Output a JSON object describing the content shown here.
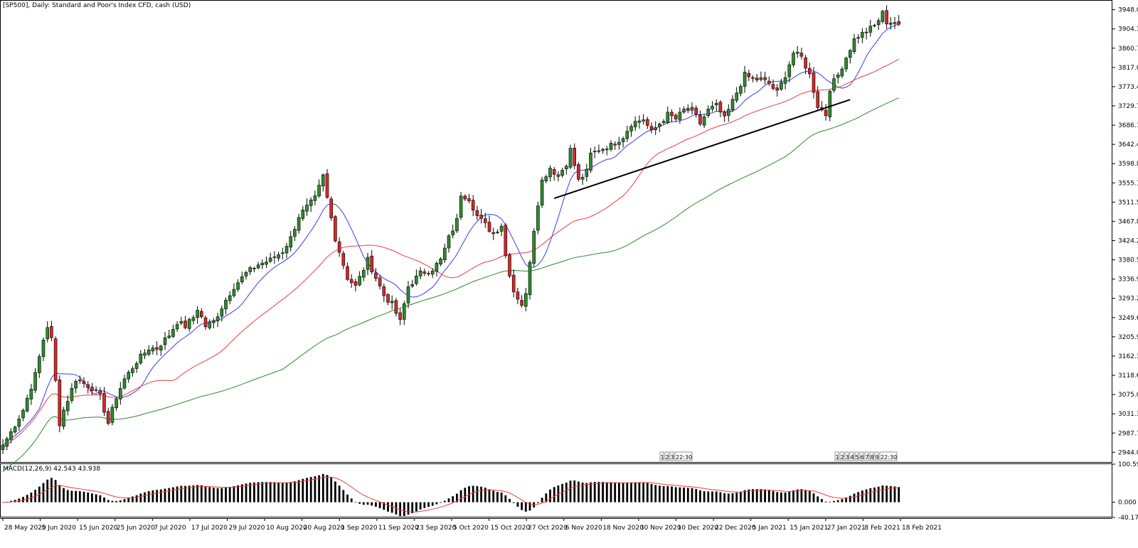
{
  "window": {
    "title": "[SP500], Daily:  Standard and Poor's Index CFD, cash (USD)",
    "macd_label": "MACD(12,26,9) 42.543 43.938"
  },
  "colors": {
    "bull": "#2e8b2e",
    "bear": "#d62828",
    "ma_short": "#3a3af5",
    "ma_mid": "#f03c3c",
    "ma_long": "#2a8a2a",
    "trendline": "#000000",
    "macd_hist": "#000000",
    "macd_signal": "#f03c3c"
  },
  "chart_data": [
    {
      "type": "candlestick",
      "title": "[SP500], Daily:  Standard and Poor's Index CFD, cash (USD)",
      "ylim": [
        2922.0,
        3970.0
      ],
      "y_ticks": [
        "3948.00",
        "3904.35",
        "3860.70",
        "3817.05",
        "3773.40",
        "3729.75",
        "3686.10",
        "3642.45",
        "3598.80",
        "3555.15",
        "3511.50",
        "3467.85",
        "3424.20",
        "3380.55",
        "3336.90",
        "3293.25",
        "3249.60",
        "3205.95",
        "3162.30",
        "3118.65",
        "3075.00",
        "3031.35",
        "2987.70",
        "2944.05"
      ],
      "x_ticks": [
        "28 May 2020",
        "5 Jun 2020",
        "15 Jun 2020",
        "25 Jun 2020",
        "7 Jul 2020",
        "17 Jul 2020",
        "29 Jul 2020",
        "10 Aug 2020",
        "20 Aug 2020",
        "1 Sep 2020",
        "11 Sep 2020",
        "23 Sep 2020",
        "5 Oct 2020",
        "15 Oct 2020",
        "27 Oct 2020",
        "6 Nov 2020",
        "18 Nov 2020",
        "30 Nov 2020",
        "10 Dec 2020",
        "22 Dec 2020",
        "5 Jan 2021",
        "15 Jan 2021",
        "27 Jan 2021",
        "8 Feb 2021",
        "18 Feb 2021"
      ],
      "close_anchors": [
        [
          0,
          2960
        ],
        [
          2,
          2990
        ],
        [
          5,
          3040
        ],
        [
          8,
          3120
        ],
        [
          10,
          3200
        ],
        [
          11,
          3230
        ],
        [
          12,
          3200
        ],
        [
          14,
          3010
        ],
        [
          15,
          3040
        ],
        [
          18,
          3110
        ],
        [
          20,
          3100
        ],
        [
          22,
          3090
        ],
        [
          24,
          3070
        ],
        [
          26,
          3010
        ],
        [
          28,
          3070
        ],
        [
          30,
          3110
        ],
        [
          33,
          3150
        ],
        [
          36,
          3180
        ],
        [
          38,
          3180
        ],
        [
          41,
          3210
        ],
        [
          43,
          3240
        ],
        [
          45,
          3230
        ],
        [
          47,
          3250
        ],
        [
          48,
          3270
        ],
        [
          50,
          3230
        ],
        [
          52,
          3240
        ],
        [
          55,
          3290
        ],
        [
          57,
          3320
        ],
        [
          60,
          3350
        ],
        [
          63,
          3370
        ],
        [
          66,
          3380
        ],
        [
          69,
          3400
        ],
        [
          71,
          3430
        ],
        [
          73,
          3480
        ],
        [
          75,
          3500
        ],
        [
          77,
          3520
        ],
        [
          79,
          3570
        ],
        [
          80,
          3520
        ],
        [
          82,
          3430
        ],
        [
          85,
          3340
        ],
        [
          87,
          3320
        ],
        [
          90,
          3380
        ],
        [
          92,
          3340
        ],
        [
          94,
          3300
        ],
        [
          96,
          3280
        ],
        [
          98,
          3240
        ],
        [
          100,
          3320
        ],
        [
          103,
          3350
        ],
        [
          106,
          3360
        ],
        [
          108,
          3380
        ],
        [
          110,
          3430
        ],
        [
          112,
          3470
        ],
        [
          113,
          3530
        ],
        [
          115,
          3520
        ],
        [
          117,
          3480
        ],
        [
          119,
          3460
        ],
        [
          121,
          3440
        ],
        [
          123,
          3460
        ],
        [
          124,
          3390
        ],
        [
          126,
          3310
        ],
        [
          128,
          3280
        ],
        [
          129,
          3300
        ],
        [
          130,
          3380
        ],
        [
          131,
          3450
        ],
        [
          132,
          3510
        ],
        [
          133,
          3560
        ],
        [
          135,
          3590
        ],
        [
          137,
          3570
        ],
        [
          139,
          3600
        ],
        [
          140,
          3630
        ],
        [
          142,
          3560
        ],
        [
          144,
          3580
        ],
        [
          145,
          3620
        ],
        [
          147,
          3630
        ],
        [
          150,
          3640
        ],
        [
          153,
          3660
        ],
        [
          155,
          3690
        ],
        [
          158,
          3700
        ],
        [
          160,
          3670
        ],
        [
          162,
          3690
        ],
        [
          164,
          3710
        ],
        [
          166,
          3700
        ],
        [
          168,
          3720
        ],
        [
          170,
          3720
        ],
        [
          172,
          3690
        ],
        [
          174,
          3720
        ],
        [
          176,
          3730
        ],
        [
          178,
          3700
        ],
        [
          181,
          3760
        ],
        [
          183,
          3800
        ],
        [
          185,
          3790
        ],
        [
          187,
          3790
        ],
        [
          189,
          3780
        ],
        [
          191,
          3760
        ],
        [
          193,
          3800
        ],
        [
          195,
          3850
        ],
        [
          197,
          3840
        ],
        [
          199,
          3800
        ],
        [
          201,
          3730
        ],
        [
          203,
          3710
        ],
        [
          204,
          3770
        ],
        [
          206,
          3800
        ],
        [
          208,
          3840
        ],
        [
          210,
          3880
        ],
        [
          213,
          3900
        ],
        [
          215,
          3910
        ],
        [
          217,
          3940
        ],
        [
          218,
          3920
        ],
        [
          220,
          3920
        ],
        [
          221,
          3915
        ]
      ],
      "ma_labels": [
        "blue",
        "red",
        "green"
      ],
      "trendline": {
        "from": [
          136,
          3520
        ],
        "to": [
          209,
          3744
        ]
      }
    },
    {
      "type": "histogram",
      "title": "MACD(12,26,9) 42.543 43.938",
      "ylim": [
        -40.174,
        100.594
      ],
      "y_ticks": [
        "100.594",
        "0.000",
        "-40.174"
      ]
    }
  ],
  "markers": [
    {
      "boxes": [
        "1",
        "2",
        "3"
      ],
      "time": "22:30"
    },
    {
      "boxes": [
        "1",
        "2",
        "3",
        "4",
        "5",
        "6",
        "7",
        "8",
        "9"
      ],
      "time": "22:30"
    }
  ]
}
